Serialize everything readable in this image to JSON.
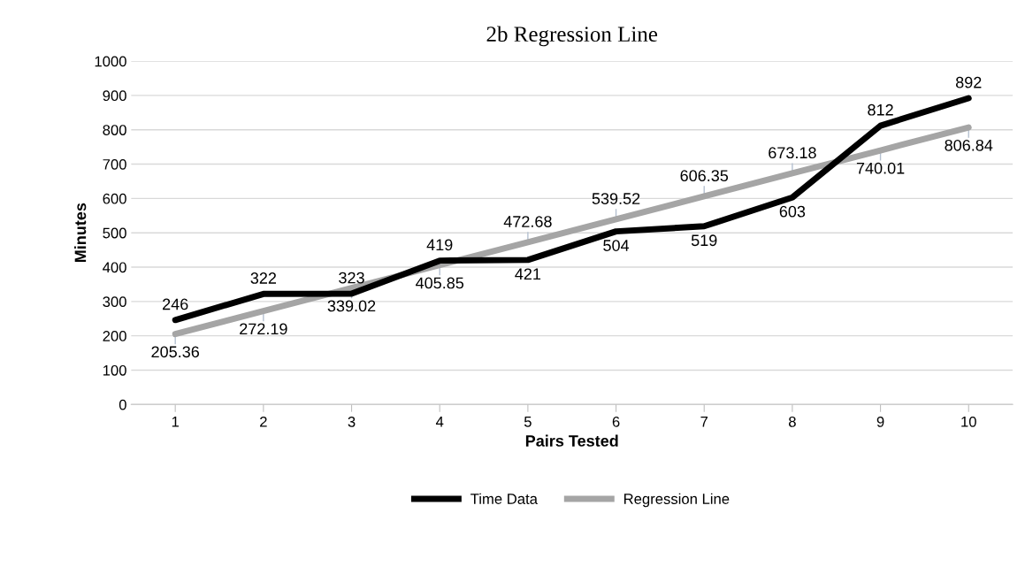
{
  "chart_data": {
    "type": "line",
    "title": "2b Regression Line",
    "xlabel": "Pairs Tested",
    "ylabel": "Minutes",
    "categories": [
      "1",
      "2",
      "3",
      "4",
      "5",
      "6",
      "7",
      "8",
      "9",
      "10"
    ],
    "series": [
      {
        "name": "Time Data",
        "color": "#000000",
        "values": [
          246,
          322,
          323,
          419,
          421,
          504,
          519,
          603,
          812,
          892
        ]
      },
      {
        "name": "Regression Line",
        "color": "#a5a5a5",
        "values": [
          205.36,
          272.19,
          339.02,
          405.85,
          472.68,
          539.52,
          606.35,
          673.18,
          740.01,
          806.84
        ]
      }
    ],
    "ylim": [
      0,
      1000
    ],
    "yticks": [
      0,
      100,
      200,
      300,
      400,
      500,
      600,
      700,
      800,
      900,
      1000
    ],
    "grid": "y",
    "legend": "bottom",
    "data_labels": true,
    "marker": "none",
    "line_style": "solid"
  }
}
